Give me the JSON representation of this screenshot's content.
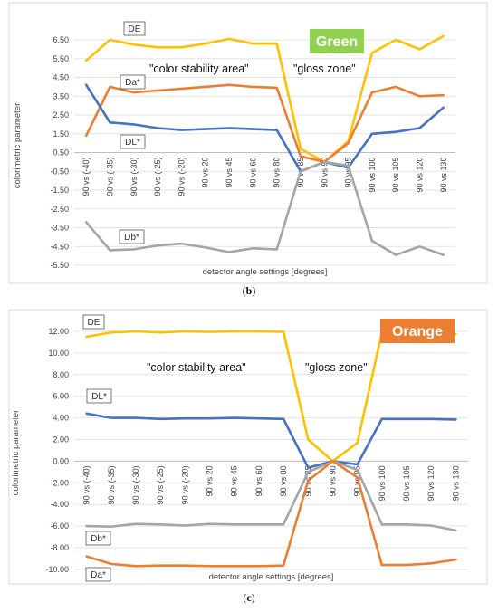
{
  "chart_data": [
    {
      "type": "line",
      "title": "Green",
      "caption": "(b)",
      "xlabel": "detector angle settings [degrees]",
      "ylabel": "colorimetric parameter",
      "ylim": [
        -5.5,
        7.5
      ],
      "yticks": [
        "6.50",
        "5.50",
        "4.50",
        "3.50",
        "2.50",
        "1.50",
        "0.50",
        "-0.50",
        "-1.50",
        "-2.50",
        "-3.50",
        "-4.50",
        "-5.50"
      ],
      "categories": [
        "90 vs (-40)",
        "90 vs (-35)",
        "90 vs (-30)",
        "90 vs (-25)",
        "90 vs (-20)",
        "90 vs 20",
        "90 vs 45",
        "90 vs 60",
        "90 vs 80",
        "90 vs 85",
        "90 vs 90",
        "90 vs 95",
        "90 vs 100",
        "90 vs 105",
        "90 vs 120",
        "90 vs 130"
      ],
      "annotations": [
        "\"color stability area\"",
        "\"gloss zone\""
      ],
      "series": [
        {
          "name": "DE",
          "color": "#FFC000",
          "values": [
            5.4,
            6.5,
            6.25,
            6.1,
            6.1,
            6.3,
            6.55,
            6.3,
            6.3,
            0.7,
            0.0,
            1.1,
            5.8,
            6.5,
            6.0,
            6.7
          ]
        },
        {
          "name": "Da*",
          "color": "#ED7D31",
          "values": [
            1.4,
            4.0,
            3.7,
            3.8,
            3.9,
            4.0,
            4.1,
            4.0,
            3.95,
            0.3,
            0.0,
            1.0,
            3.7,
            4.0,
            3.5,
            3.55
          ]
        },
        {
          "name": "DL*",
          "color": "#4472C4",
          "values": [
            4.1,
            2.1,
            2.0,
            1.8,
            1.7,
            1.75,
            1.8,
            1.75,
            1.7,
            -0.5,
            0.0,
            -0.3,
            1.5,
            1.6,
            1.8,
            2.9
          ]
        },
        {
          "name": "Db*",
          "color": "#A5A5A5",
          "values": [
            -3.2,
            -4.7,
            -4.65,
            -4.45,
            -4.35,
            -4.55,
            -4.8,
            -4.6,
            -4.65,
            -0.5,
            0.0,
            -0.2,
            -4.2,
            -4.95,
            -4.5,
            -4.95
          ]
        }
      ]
    },
    {
      "type": "line",
      "title": "Orange",
      "caption": "(c)",
      "xlabel": "detector angle settings [degrees]",
      "ylabel": "colorimetric parameter",
      "ylim": [
        -10,
        13
      ],
      "yticks": [
        "12.00",
        "10.00",
        "8.00",
        "6.00",
        "4.00",
        "2.00",
        "0.00",
        "-2.00",
        "-4.00",
        "-6.00",
        "-8.00",
        "-10.00"
      ],
      "categories": [
        "90 vs (-40)",
        "90 vs (-35)",
        "90 vs (-30)",
        "90 vs (-25)",
        "90 vs (-20)",
        "90 vs 20",
        "90 vs 45",
        "90 vs 60",
        "90 vs 80",
        "90 vs 85",
        "90 vs 90",
        "90 vs 95",
        "90 vs 100",
        "90 vs 105",
        "90 vs 120",
        "90 vs 130"
      ],
      "annotations": [
        "\"color stability area\"",
        "\"gloss zone\""
      ],
      "series": [
        {
          "name": "DE",
          "color": "#FFC000",
          "values": [
            11.5,
            11.9,
            12.0,
            11.9,
            12.0,
            11.95,
            12.0,
            12.0,
            11.95,
            2.0,
            0.0,
            1.7,
            11.9,
            11.85,
            11.8,
            11.75
          ]
        },
        {
          "name": "DL*",
          "color": "#4472C4",
          "values": [
            4.4,
            4.0,
            4.0,
            3.9,
            3.95,
            3.95,
            4.0,
            3.95,
            3.9,
            -0.6,
            0.0,
            -0.3,
            3.9,
            3.9,
            3.9,
            3.85
          ]
        },
        {
          "name": "Db*",
          "color": "#A5A5A5",
          "values": [
            -6.0,
            -6.05,
            -5.8,
            -5.85,
            -5.95,
            -5.8,
            -5.85,
            -5.85,
            -5.85,
            -1.0,
            0.0,
            -0.8,
            -5.85,
            -5.85,
            -5.95,
            -6.4
          ]
        },
        {
          "name": "Da*",
          "color": "#ED7D31",
          "values": [
            -8.8,
            -9.5,
            -9.7,
            -9.65,
            -9.65,
            -9.7,
            -9.7,
            -9.7,
            -9.65,
            -1.8,
            0.0,
            -1.5,
            -9.6,
            -9.6,
            -9.45,
            -9.1
          ]
        }
      ]
    }
  ]
}
